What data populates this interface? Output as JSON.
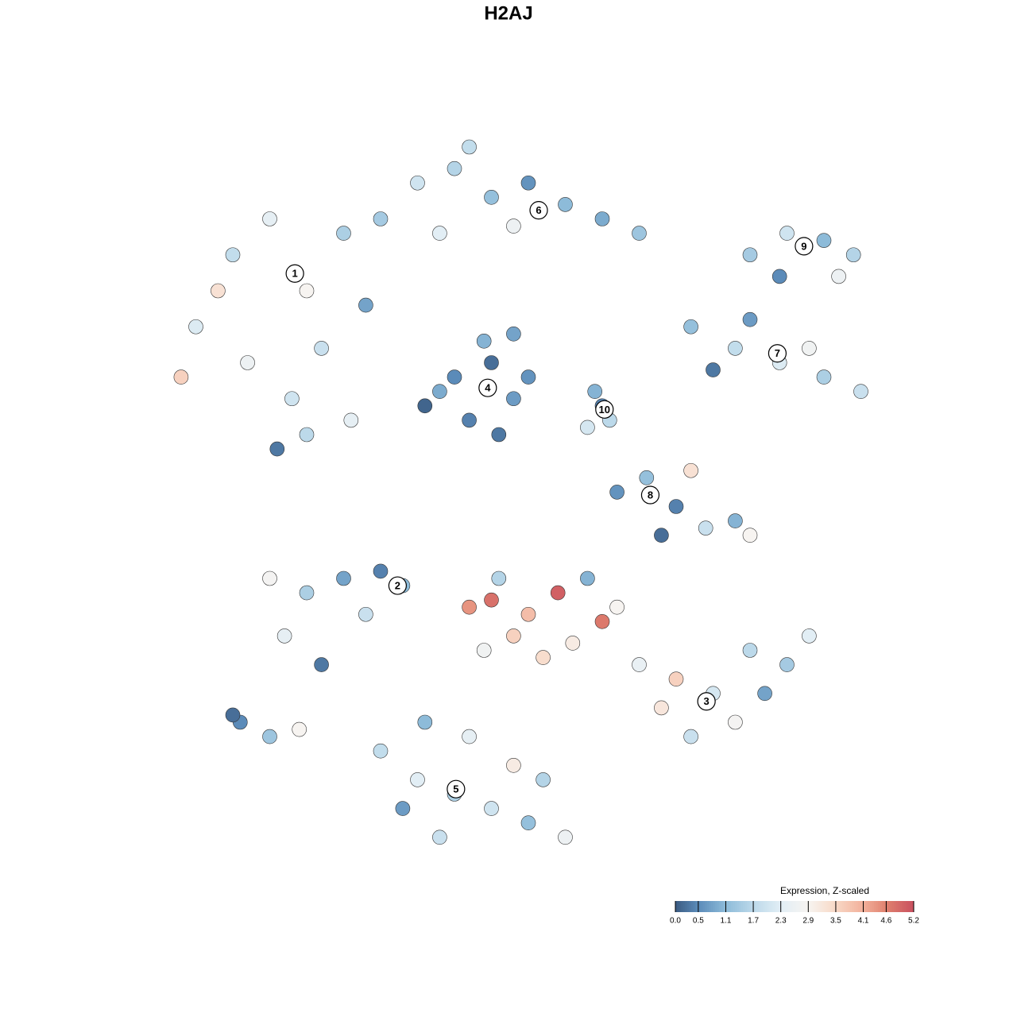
{
  "chart_data": {
    "type": "scatter",
    "title": "H2AJ",
    "xlim": [
      0,
      100
    ],
    "ylim": [
      0,
      100
    ],
    "series": [
      {
        "x": [
          5,
          10,
          15,
          20,
          25,
          12,
          18,
          8,
          22,
          28,
          30,
          16,
          20,
          3,
          26,
          35,
          40,
          45,
          50,
          55,
          60,
          48,
          38,
          65,
          42,
          40,
          45,
          48,
          42,
          38,
          46,
          50,
          44,
          36,
          48,
          59,
          61,
          60,
          58,
          72,
          78,
          84,
          90,
          95,
          80,
          88,
          75,
          80,
          85,
          90,
          94,
          84,
          92,
          62,
          66,
          70,
          74,
          78,
          80,
          68,
          72,
          20,
          25,
          30,
          33,
          17,
          22,
          28,
          15,
          11,
          15,
          19,
          10,
          42,
          45,
          50,
          54,
          60,
          48,
          56,
          44,
          52,
          46,
          58,
          62,
          65,
          70,
          75,
          80,
          85,
          88,
          72,
          78,
          68,
          82,
          30,
          35,
          40,
          45,
          50,
          55,
          38,
          33,
          48,
          42,
          52,
          36
        ],
        "y": [
          75,
          85,
          90,
          80,
          88,
          70,
          65,
          80,
          72,
          78,
          90,
          58,
          60,
          68,
          62,
          95,
          97,
          93,
          95,
          92,
          90,
          89,
          88,
          88,
          100,
          68,
          70,
          65,
          62,
          66,
          60,
          68,
          73,
          64,
          74,
          66,
          62,
          64,
          61,
          75,
          72,
          70,
          68,
          66,
          76,
          72,
          69,
          85,
          88,
          87,
          85,
          82,
          82,
          52,
          54,
          50,
          47,
          48,
          46,
          46,
          55,
          38,
          40,
          41,
          39,
          32,
          28,
          35,
          40,
          20,
          18,
          19,
          21,
          36,
          37,
          35,
          38,
          34,
          32,
          31,
          30,
          29,
          40,
          40,
          36,
          28,
          26,
          24,
          30,
          28,
          32,
          18,
          20,
          22,
          24,
          16,
          12,
          10,
          8,
          6,
          4,
          4,
          8,
          14,
          18,
          12,
          20
        ],
        "values": [
          2.2,
          1.8,
          2.4,
          2.9,
          1.5,
          2.6,
          2.0,
          3.3,
          1.9,
          0.8,
          1.4,
          0.3,
          1.7,
          3.6,
          2.4,
          2.0,
          1.6,
          1.2,
          0.6,
          1.1,
          0.9,
          2.6,
          2.3,
          1.3,
          1.8,
          0.5,
          0.2,
          0.7,
          0.4,
          0.9,
          0.3,
          0.6,
          1.0,
          0.1,
          0.8,
          1.0,
          1.7,
          0.4,
          2.1,
          1.2,
          1.8,
          2.2,
          1.5,
          1.9,
          0.7,
          2.7,
          0.3,
          1.4,
          2.0,
          1.1,
          1.6,
          0.5,
          2.6,
          0.6,
          1.2,
          0.4,
          1.9,
          1.0,
          2.9,
          0.2,
          3.3,
          1.5,
          0.8,
          0.4,
          1.1,
          2.4,
          0.3,
          1.9,
          2.8,
          0.5,
          1.3,
          2.9,
          0.2,
          4.4,
          4.8,
          3.9,
          5.0,
          4.7,
          3.6,
          3.1,
          2.7,
          3.4,
          1.6,
          1.0,
          2.9,
          2.5,
          3.6,
          2.1,
          1.7,
          1.4,
          2.3,
          1.9,
          2.8,
          3.2,
          0.8,
          1.8,
          2.3,
          1.5,
          2.0,
          1.2,
          2.6,
          1.9,
          0.7,
          3.1,
          2.4,
          1.6,
          1.1
        ]
      }
    ],
    "clusters": [
      {
        "label": "1",
        "x": 18.4,
        "y": 82.4
      },
      {
        "label": "2",
        "x": 32.3,
        "y": 39.0
      },
      {
        "label": "3",
        "x": 74.1,
        "y": 22.9
      },
      {
        "label": "4",
        "x": 44.5,
        "y": 66.5
      },
      {
        "label": "5",
        "x": 40.2,
        "y": 10.7
      },
      {
        "label": "6",
        "x": 51.4,
        "y": 91.2
      },
      {
        "label": "7",
        "x": 83.7,
        "y": 71.3
      },
      {
        "label": "8",
        "x": 66.5,
        "y": 51.6
      },
      {
        "label": "9",
        "x": 87.3,
        "y": 86.2
      },
      {
        "label": "10",
        "x": 60.3,
        "y": 63.5
      }
    ],
    "colorbar": {
      "title": "Expression, Z-scaled",
      "ticks": [
        {
          "value": 0,
          "label": "0.0"
        },
        0.5,
        1.1,
        1.7,
        2.3,
        2.9,
        3.5,
        4.1,
        4.6,
        5.2
      ],
      "colors": [
        "#3b5b82",
        "#5b8bb9",
        "#8dbbd9",
        "#bcd9ea",
        "#e2eef5",
        "#f7f4f1",
        "#f8d8c6",
        "#f2b09a",
        "#e0816f",
        "#c9505f"
      ]
    }
  }
}
